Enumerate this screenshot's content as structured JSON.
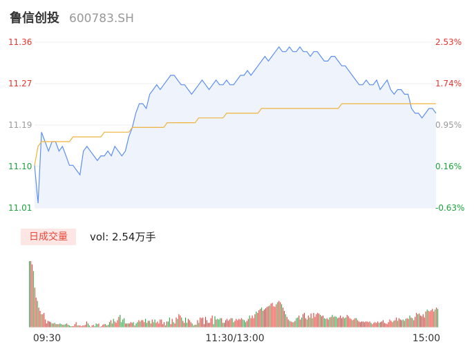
{
  "header": {
    "name": "鲁信创投",
    "code": "600783.SH"
  },
  "colors": {
    "up": "#e8332a",
    "down": "#1aa33a",
    "flat": "#999999",
    "price_line": "#5b8ff0",
    "price_fill": "#eef3fc",
    "avg_line": "#f0b23c",
    "grid": "#eeeeee"
  },
  "volume_panel": {
    "tag": "日成交量",
    "volume_text": "vol: 2.54万手"
  },
  "chart_data": [
    {
      "type": "line",
      "title": "",
      "x_ticks": [
        "09:30",
        "11:30/13:00",
        "15:00"
      ],
      "y_left_ticks": [
        "11.36",
        "11.27",
        "11.19",
        "11.10",
        "11.01"
      ],
      "y_right_ticks": [
        "2.53%",
        "1.74%",
        "0.95%",
        "0.16%",
        "-0.63%"
      ],
      "ylim": [
        11.01,
        11.36
      ],
      "prev_close": 11.08,
      "series": [
        {
          "values": [
            11.1,
            11.02,
            11.17,
            11.15,
            11.13,
            11.15,
            11.15,
            11.13,
            11.14,
            11.12,
            11.1,
            11.1,
            11.09,
            11.08,
            11.13,
            11.14,
            11.13,
            11.12,
            11.11,
            11.12,
            11.12,
            11.13,
            11.12,
            11.14,
            11.13,
            11.12,
            11.13,
            11.16,
            11.18,
            11.21,
            11.23,
            11.23,
            11.22,
            11.25,
            11.26,
            11.27,
            11.26,
            11.27,
            11.28,
            11.29,
            11.29,
            11.28,
            11.27,
            11.27,
            11.26,
            11.25,
            11.26,
            11.27,
            11.28,
            11.27,
            11.26,
            11.27,
            11.28,
            11.27,
            11.27,
            11.28,
            11.27,
            11.27,
            11.28,
            11.29,
            11.29,
            11.3,
            11.29,
            11.3,
            11.31,
            11.32,
            11.33,
            11.32,
            11.33,
            11.34,
            11.35,
            11.34,
            11.34,
            11.35,
            11.34,
            11.34,
            11.35,
            11.34,
            11.34,
            11.33,
            11.34,
            11.34,
            11.33,
            11.32,
            11.32,
            11.33,
            11.33,
            11.32,
            11.31,
            11.31,
            11.3,
            11.29,
            11.28,
            11.27,
            11.27,
            11.28,
            11.27,
            11.27,
            11.28,
            11.26,
            11.27,
            11.28,
            11.26,
            11.25,
            11.26,
            11.26,
            11.25,
            11.25,
            11.22,
            11.21,
            11.21,
            11.2,
            11.21,
            11.22,
            11.22,
            11.21
          ]
        },
        {
          "values": [
            11.1,
            11.14,
            11.15,
            11.15,
            11.15,
            11.15,
            11.15,
            11.15,
            11.15,
            11.15,
            11.15,
            11.16,
            11.16,
            11.16,
            11.16,
            11.16,
            11.16,
            11.16,
            11.16,
            11.16,
            11.17,
            11.17,
            11.17,
            11.17,
            11.17,
            11.17,
            11.17,
            11.17,
            11.18,
            11.18,
            11.18,
            11.18,
            11.18,
            11.18,
            11.18,
            11.18,
            11.18,
            11.18,
            11.19,
            11.19,
            11.19,
            11.19,
            11.19,
            11.19,
            11.19,
            11.19,
            11.19,
            11.2,
            11.2,
            11.2,
            11.2,
            11.2,
            11.2,
            11.2,
            11.2,
            11.21,
            11.21,
            11.21,
            11.21,
            11.21,
            11.21,
            11.21,
            11.21,
            11.21,
            11.21,
            11.22,
            11.22,
            11.22,
            11.22,
            11.22,
            11.22,
            11.22,
            11.22,
            11.22,
            11.22,
            11.22,
            11.22,
            11.22,
            11.22,
            11.22,
            11.22,
            11.22,
            11.22,
            11.22,
            11.22,
            11.22,
            11.22,
            11.22,
            11.23,
            11.23,
            11.23,
            11.23,
            11.23,
            11.23,
            11.23,
            11.23,
            11.23,
            11.23,
            11.23,
            11.23,
            11.23,
            11.23,
            11.23,
            11.23,
            11.23,
            11.23,
            11.23,
            11.23,
            11.23,
            11.23,
            11.23,
            11.23,
            11.23,
            11.23,
            11.23,
            11.23
          ]
        }
      ]
    },
    {
      "type": "bar",
      "title": "",
      "values": [
        100,
        100,
        95,
        85,
        60,
        45,
        40,
        30,
        25,
        20,
        20,
        22,
        12,
        6,
        10,
        9,
        8,
        6,
        6,
        7,
        5,
        5,
        5,
        6,
        5,
        4,
        4,
        5,
        6,
        4,
        3,
        2,
        2,
        2,
        5,
        8,
        3,
        3,
        3,
        2,
        3,
        3,
        4,
        9,
        6,
        3,
        1,
        3,
        4,
        2,
        6,
        5,
        6,
        1,
        2,
        4,
        5,
        5,
        3,
        4,
        8,
        11,
        6,
        13,
        9,
        7,
        11,
        16,
        19,
        8,
        12,
        14,
        6,
        6,
        6,
        6,
        8,
        7,
        8,
        3,
        6,
        8,
        11,
        9,
        11,
        11,
        8,
        13,
        7,
        10,
        10,
        6,
        12,
        8,
        12,
        7,
        9,
        6,
        12,
        12,
        5,
        8,
        3,
        9,
        9,
        15,
        5,
        13,
        8,
        6,
        15,
        13,
        20,
        18,
        15,
        10,
        7,
        15,
        7,
        13,
        11,
        8,
        6,
        3,
        4,
        4,
        11,
        7,
        15,
        14,
        15,
        5,
        16,
        11,
        7,
        7,
        14,
        18,
        5,
        17,
        12,
        13,
        12,
        14,
        14,
        7,
        7,
        11,
        13,
        10,
        12,
        14,
        14,
        8,
        10,
        13,
        11,
        13,
        12,
        14,
        12,
        11,
        8,
        10,
        13,
        18,
        14,
        18,
        14,
        20,
        24,
        22,
        26,
        28,
        30,
        25,
        27,
        29,
        31,
        32,
        33,
        36,
        37,
        32,
        31,
        35,
        38,
        40,
        38,
        35,
        30,
        25,
        20,
        16,
        12,
        10,
        9,
        8,
        8,
        10,
        14,
        15,
        18,
        12,
        15,
        20,
        22,
        14,
        12,
        18,
        15,
        21,
        14,
        22,
        16,
        20,
        22,
        21,
        19,
        17,
        18,
        14,
        13,
        14,
        12,
        15,
        16,
        19,
        16,
        17,
        16,
        14,
        15,
        18,
        14,
        16,
        14,
        15,
        19,
        17,
        14,
        13,
        11,
        12,
        14,
        14,
        11,
        9,
        8,
        9,
        9,
        8,
        9,
        9,
        8,
        9,
        7,
        5,
        7,
        8,
        7,
        9,
        7,
        8,
        9,
        11,
        7,
        6,
        5,
        8,
        12,
        10,
        8,
        10,
        11,
        15,
        10,
        14,
        12,
        11,
        12,
        10,
        13,
        14,
        13,
        18,
        15,
        14,
        11,
        16,
        22,
        20,
        21,
        18,
        17,
        20,
        15,
        24,
        27,
        25,
        24,
        26,
        28,
        24,
        27,
        30,
        28
      ]
    }
  ]
}
